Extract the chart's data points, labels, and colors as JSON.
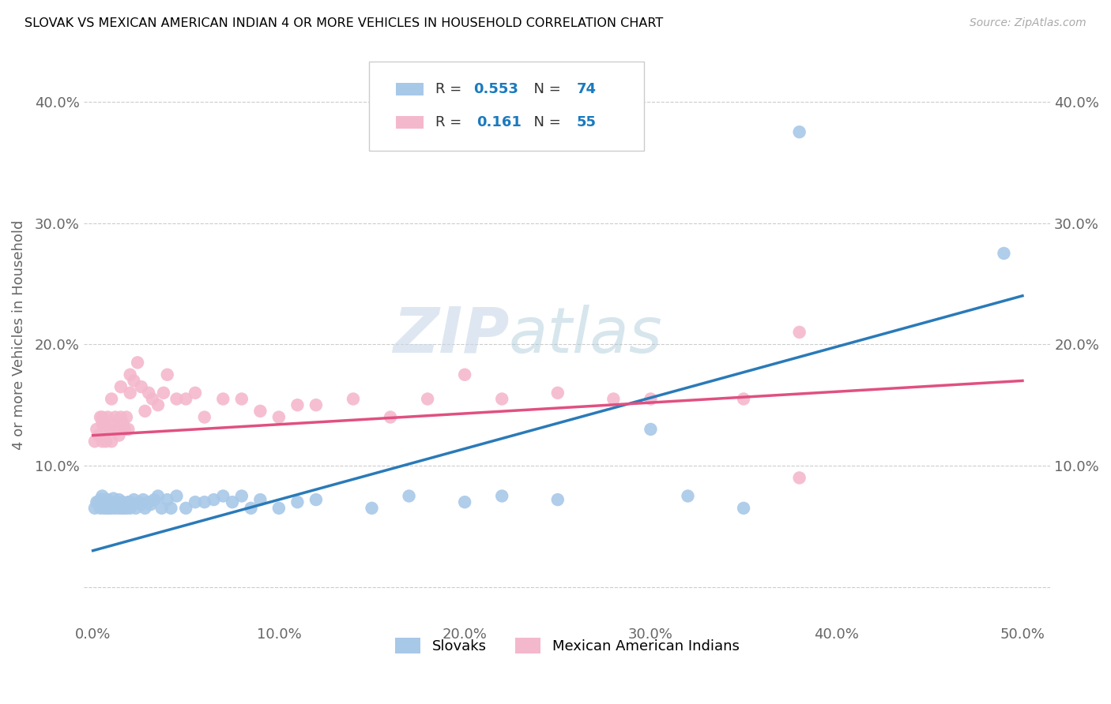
{
  "title": "SLOVAK VS MEXICAN AMERICAN INDIAN 4 OR MORE VEHICLES IN HOUSEHOLD CORRELATION CHART",
  "source": "Source: ZipAtlas.com",
  "ylabel": "4 or more Vehicles in Household",
  "xlim": [
    -0.005,
    0.515
  ],
  "ylim": [
    -0.03,
    0.445
  ],
  "xticks": [
    0.0,
    0.1,
    0.2,
    0.3,
    0.4,
    0.5
  ],
  "yticks": [
    0.0,
    0.1,
    0.2,
    0.3,
    0.4
  ],
  "xtick_labels": [
    "0.0%",
    "10.0%",
    "20.0%",
    "30.0%",
    "40.0%",
    "50.0%"
  ],
  "ytick_labels": [
    "",
    "10.0%",
    "20.0%",
    "30.0%",
    "40.0%"
  ],
  "slovak_color": "#a8c8e8",
  "mexican_color": "#f4b8cc",
  "slovak_line_color": "#2a7ab8",
  "mexican_line_color": "#e05080",
  "R_slovak": 0.553,
  "N_slovak": 74,
  "R_mexican": 0.161,
  "N_mexican": 55,
  "watermark_zip": "ZIP",
  "watermark_atlas": "atlas",
  "sk_x": [
    0.001,
    0.002,
    0.003,
    0.003,
    0.004,
    0.004,
    0.005,
    0.005,
    0.006,
    0.006,
    0.006,
    0.007,
    0.007,
    0.008,
    0.008,
    0.008,
    0.009,
    0.009,
    0.01,
    0.01,
    0.011,
    0.011,
    0.012,
    0.012,
    0.013,
    0.014,
    0.014,
    0.015,
    0.015,
    0.016,
    0.016,
    0.017,
    0.018,
    0.018,
    0.019,
    0.02,
    0.02,
    0.021,
    0.022,
    0.023,
    0.025,
    0.026,
    0.027,
    0.028,
    0.03,
    0.031,
    0.033,
    0.035,
    0.037,
    0.04,
    0.042,
    0.045,
    0.05,
    0.055,
    0.06,
    0.065,
    0.07,
    0.075,
    0.08,
    0.085,
    0.09,
    0.1,
    0.11,
    0.12,
    0.15,
    0.17,
    0.2,
    0.22,
    0.25,
    0.3,
    0.32,
    0.35,
    0.38,
    0.49
  ],
  "sk_y": [
    0.065,
    0.07,
    0.068,
    0.07,
    0.065,
    0.072,
    0.07,
    0.075,
    0.065,
    0.068,
    0.072,
    0.065,
    0.07,
    0.065,
    0.068,
    0.072,
    0.07,
    0.065,
    0.065,
    0.07,
    0.068,
    0.073,
    0.065,
    0.07,
    0.07,
    0.065,
    0.072,
    0.065,
    0.068,
    0.065,
    0.07,
    0.065,
    0.065,
    0.068,
    0.07,
    0.065,
    0.07,
    0.068,
    0.072,
    0.065,
    0.07,
    0.068,
    0.072,
    0.065,
    0.07,
    0.068,
    0.072,
    0.075,
    0.065,
    0.072,
    0.065,
    0.075,
    0.065,
    0.07,
    0.07,
    0.072,
    0.075,
    0.07,
    0.075,
    0.065,
    0.072,
    0.065,
    0.07,
    0.072,
    0.065,
    0.075,
    0.07,
    0.075,
    0.072,
    0.13,
    0.075,
    0.065,
    0.375,
    0.275
  ],
  "mx_x": [
    0.001,
    0.002,
    0.003,
    0.004,
    0.005,
    0.005,
    0.006,
    0.007,
    0.008,
    0.009,
    0.01,
    0.011,
    0.012,
    0.013,
    0.014,
    0.015,
    0.016,
    0.017,
    0.018,
    0.019,
    0.02,
    0.022,
    0.024,
    0.026,
    0.028,
    0.03,
    0.032,
    0.035,
    0.038,
    0.04,
    0.045,
    0.05,
    0.055,
    0.06,
    0.07,
    0.08,
    0.09,
    0.1,
    0.11,
    0.12,
    0.14,
    0.16,
    0.18,
    0.2,
    0.22,
    0.25,
    0.28,
    0.3,
    0.35,
    0.38,
    0.005,
    0.01,
    0.015,
    0.02,
    0.38
  ],
  "mx_y": [
    0.12,
    0.13,
    0.125,
    0.14,
    0.12,
    0.135,
    0.13,
    0.12,
    0.14,
    0.13,
    0.12,
    0.135,
    0.14,
    0.13,
    0.125,
    0.14,
    0.135,
    0.13,
    0.14,
    0.13,
    0.16,
    0.17,
    0.185,
    0.165,
    0.145,
    0.16,
    0.155,
    0.15,
    0.16,
    0.175,
    0.155,
    0.155,
    0.16,
    0.14,
    0.155,
    0.155,
    0.145,
    0.14,
    0.15,
    0.15,
    0.155,
    0.14,
    0.155,
    0.175,
    0.155,
    0.16,
    0.155,
    0.155,
    0.155,
    0.09,
    0.14,
    0.155,
    0.165,
    0.175,
    0.21
  ]
}
